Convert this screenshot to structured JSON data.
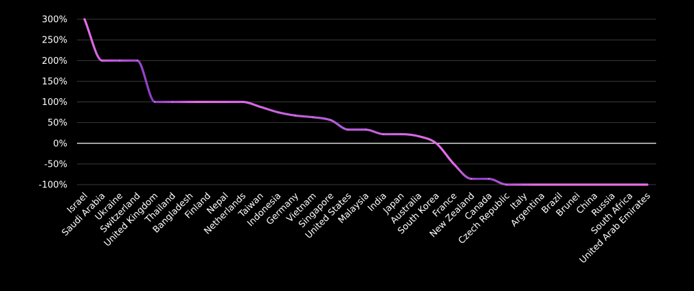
{
  "chart_data": {
    "type": "line",
    "title": "",
    "xlabel": "",
    "ylabel": "",
    "categories": [
      "Israel",
      "Saudi Arabia",
      "Ukraine",
      "Switzerland",
      "United Kingdom",
      "Thailand",
      "Bangladesh",
      "Finland",
      "Nepal",
      "Netherlands",
      "Taiwan",
      "Indonesia",
      "Germany",
      "Vietnam",
      "Singapore",
      "United States",
      "Malaysia",
      "India",
      "Japan",
      "Australia",
      "South Korea",
      "France",
      "New Zealand",
      "Canada",
      "Czech Republic",
      "Italy",
      "Argentina",
      "Brazil",
      "Brunei",
      "China",
      "Russia",
      "South Africa",
      "United Arab Emirates"
    ],
    "series": [
      {
        "values": [
          300,
          200,
          200,
          200,
          100,
          100,
          100,
          100,
          100,
          100,
          88,
          75,
          67,
          63,
          56,
          33,
          33,
          22,
          22,
          17,
          0,
          -50,
          -86,
          -86,
          -100,
          -100,
          -100,
          -100,
          -100,
          -100,
          -100,
          -100,
          -100
        ]
      }
    ],
    "yticks": [
      "300%",
      "250%",
      "200%",
      "150%",
      "100%",
      "50%",
      "0%",
      "-50%",
      "-100%"
    ],
    "ytick_values": [
      300,
      250,
      200,
      150,
      100,
      50,
      0,
      -50,
      -100
    ],
    "ylim": [
      -100,
      300
    ],
    "grid": true,
    "colors": {
      "background": "#000000",
      "grid": "#3a3a3a",
      "zero_line": "#ffffff",
      "line_light": "#e86ee8",
      "line_dark": "#8a3fc4",
      "text": "#ffffff"
    }
  }
}
